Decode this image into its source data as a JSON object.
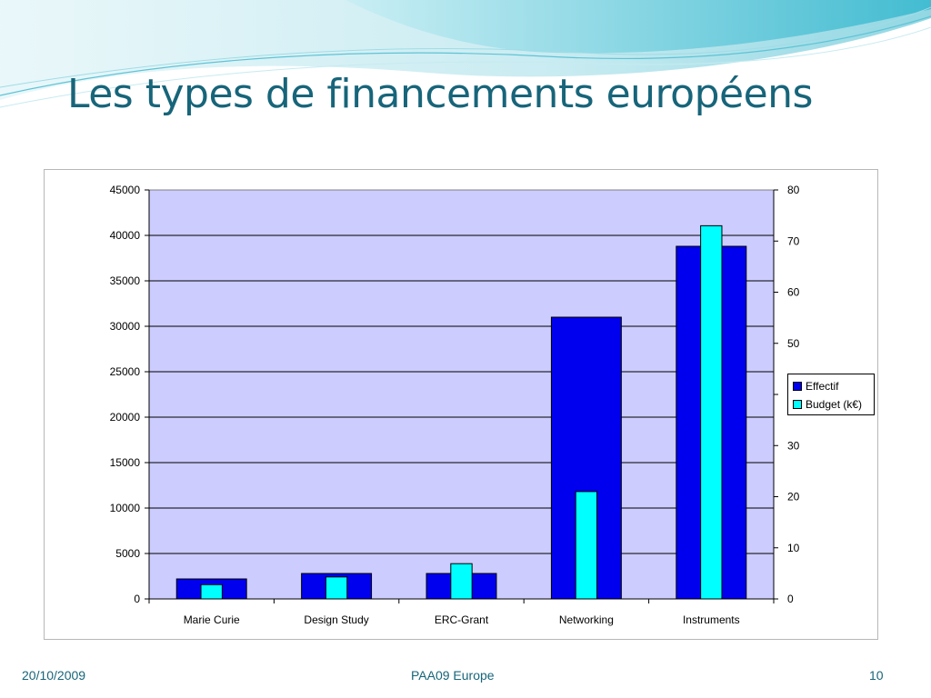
{
  "slide": {
    "title": "Les types de financements européens",
    "footer_date": "20/10/2009",
    "footer_center": "PAA09 Europe",
    "page_number": "10"
  },
  "colors": {
    "title": "#17657a",
    "plot_area": "#ccccff",
    "series_effectif": "#0000ee",
    "series_budget": "#00ffff"
  },
  "chart_data": {
    "type": "bar",
    "categories": [
      "Marie Curie",
      "Design Study",
      "ERC-Grant",
      "Networking",
      "Instruments"
    ],
    "series": [
      {
        "name": "Effectif",
        "axis": "left",
        "values": [
          2200,
          2800,
          2800,
          31000,
          38800
        ]
      },
      {
        "name": "Budget (k€)",
        "axis": "right",
        "values": [
          2.8,
          4.3,
          6.9,
          21.0,
          73.0
        ]
      }
    ],
    "y_left": {
      "min": 0,
      "max": 45000,
      "step": 5000
    },
    "y_right": {
      "min": 0,
      "max": 80,
      "step": 10,
      "unlabeled_ticks": [
        40
      ]
    },
    "grid": true,
    "legend_position": "right"
  }
}
